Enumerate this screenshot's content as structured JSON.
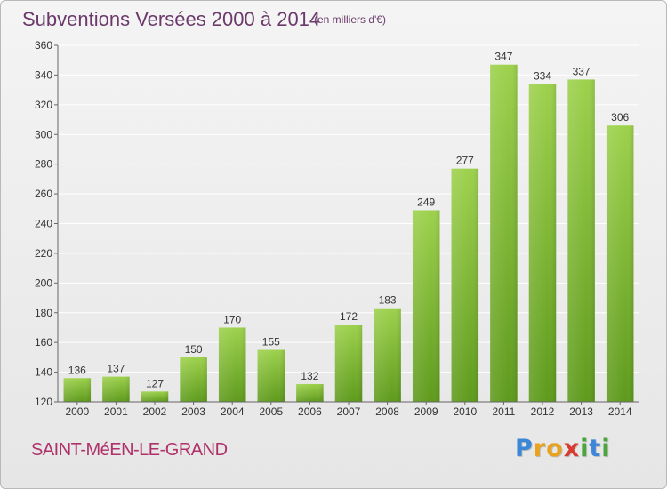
{
  "header": {
    "title": "Subventions Versées 2000 à 2014",
    "subtitle": "(en milliers d'€)"
  },
  "commune": "SAINT-MéEN-LE-GRAND",
  "brand": {
    "letters": [
      "P",
      "r",
      "o",
      "x",
      "i",
      "t",
      "i"
    ],
    "colors": [
      "#3b86d6",
      "#e8a21d",
      "#e8a21d",
      "#d93a2f",
      "#4aa63c",
      "#3b86d6",
      "#4aa63c"
    ]
  },
  "colors": {
    "bar_top": "#9dd14c",
    "bar_bottom": "#5e9a1c",
    "grid": "#ffffff",
    "axis": "#666666"
  },
  "chart_data": {
    "type": "bar",
    "title": "Subventions Versées 2000 à 2014",
    "subtitle": "(en milliers d'€)",
    "categories": [
      "2000",
      "2001",
      "2002",
      "2003",
      "2004",
      "2005",
      "2006",
      "2007",
      "2008",
      "2009",
      "2010",
      "2011",
      "2012",
      "2013",
      "2014"
    ],
    "values": [
      136,
      137,
      127,
      150,
      170,
      155,
      132,
      172,
      183,
      249,
      277,
      347,
      334,
      337,
      306
    ],
    "ylim": [
      120,
      360
    ],
    "yticks": [
      120,
      140,
      160,
      180,
      200,
      220,
      240,
      260,
      280,
      300,
      320,
      340,
      360
    ],
    "grid": true,
    "data_labels": true,
    "xlabel": "",
    "ylabel": ""
  }
}
